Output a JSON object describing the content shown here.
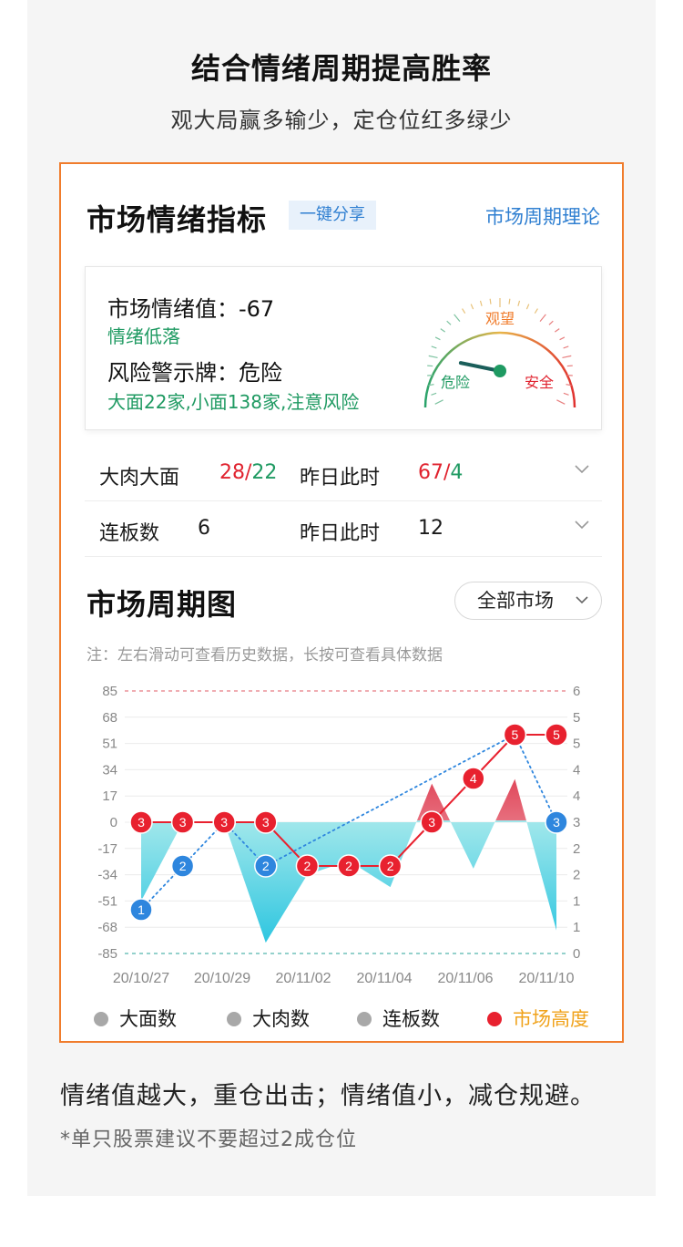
{
  "headline": {
    "title": "结合情绪周期提高胜率",
    "subtitle": "观大局赢多输少，定仓位红多绿少"
  },
  "card": {
    "title": "市场情绪指标",
    "share_label": "一键分享",
    "theory_link": "市场周期理论"
  },
  "gauge": {
    "sentiment_text": "市场情绪值：-67",
    "sentiment_state": "情绪低落",
    "risk_text": "风险警示牌：危险",
    "risk_detail": "大面22家,小面138家,注意风险",
    "label_watch": "观望",
    "label_danger": "危险",
    "label_safe": "安全",
    "needle_value": -67
  },
  "stats": [
    {
      "label": "大肉大面",
      "value_red": "28",
      "sep": "/",
      "value_green": "22",
      "yesterday_label": "昨日此时",
      "yesterday_red": "67",
      "yesterday_sep": "/",
      "yesterday_green": "4"
    },
    {
      "label": "连板数",
      "value": "6",
      "yesterday_label": "昨日此时",
      "yesterday_value": "12"
    }
  ],
  "cycle": {
    "title": "市场周期图",
    "market_select": "全部市场",
    "note": "注：左右滑动可查看历史数据，长按可查看具体数据"
  },
  "legend": [
    {
      "label": "大面数",
      "color": "#a8a8a8"
    },
    {
      "label": "大肉数",
      "color": "#a8a8a8"
    },
    {
      "label": "连板数",
      "color": "#a8a8a8"
    },
    {
      "label": "市场高度",
      "color": "#e8212f",
      "text_color": "#f0a21a"
    }
  ],
  "chart_data": {
    "type": "line",
    "x_labels": [
      "20/10/27",
      "20/10/29",
      "20/11/02",
      "20/11/04",
      "20/11/06",
      "20/11/10"
    ],
    "y_left_ticks": [
      "85",
      "68",
      "51",
      "34",
      "17",
      "0",
      "-17",
      "-34",
      "-51",
      "-68",
      "-85"
    ],
    "y_right_ticks": [
      "6",
      "5",
      "5",
      "4",
      "4",
      "3",
      "2",
      "2",
      "1",
      "1",
      "0"
    ],
    "ylim_left": [
      -85,
      85
    ],
    "ylim_right": [
      0,
      6
    ],
    "sentiment_area": [
      -51,
      0,
      0,
      -78,
      -34,
      -25,
      -42,
      25,
      -30,
      28,
      -70
    ],
    "series": [
      {
        "name": "市场高度",
        "values": [
          3,
          3,
          3,
          3,
          2,
          2,
          2,
          3,
          4,
          5,
          5
        ],
        "color": "#e8212f"
      },
      {
        "name": "连板数",
        "values": [
          1,
          2,
          3,
          2,
          null,
          null,
          null,
          null,
          null,
          5,
          3
        ],
        "color": "#2e86de"
      }
    ]
  },
  "footer": {
    "main": "情绪值越大，重仓出击；情绪值小，减仓规避。",
    "note": "*单只股票建议不要超过2成仓位"
  }
}
